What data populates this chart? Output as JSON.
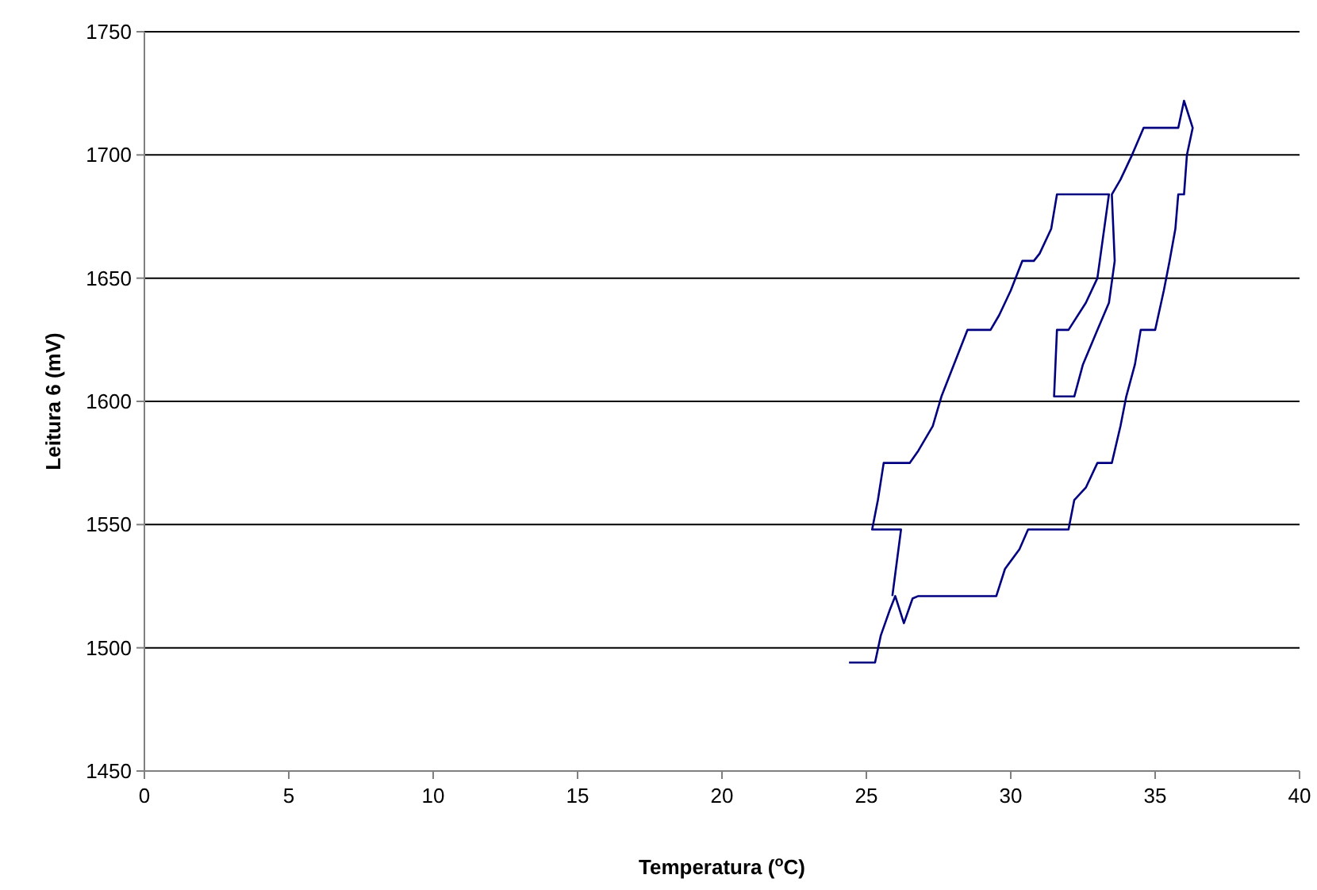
{
  "chart_data": {
    "type": "line",
    "xlabel": "Temperatura ($^{o}$C)",
    "ylabel": "Leitura 6 (mV)",
    "xlim": [
      0,
      40
    ],
    "ylim": [
      1450,
      1750
    ],
    "xticks": [
      0,
      5,
      10,
      15,
      20,
      25,
      30,
      35,
      40
    ],
    "yticks": [
      1450,
      1500,
      1550,
      1600,
      1650,
      1700,
      1750
    ],
    "grid": "y",
    "marker": "none",
    "line_style": "solid",
    "series": [
      {
        "color": "#000080",
        "x": [
          24.4,
          25.3,
          25.5,
          25.8,
          26.0,
          26.3,
          26.6,
          26.8,
          29.5,
          29.8,
          30.3,
          30.6,
          32.0,
          32.2,
          32.6,
          33.0,
          33.5,
          33.8,
          34.0,
          34.3,
          34.5,
          35.0,
          35.3,
          35.5,
          35.7,
          35.8,
          36.0,
          36.1,
          36.3,
          36.0,
          35.8,
          34.6,
          34.2,
          33.8,
          33.5,
          33.6,
          33.4,
          33.0,
          32.5,
          32.2,
          31.5,
          31.6,
          32.0,
          32.6,
          33.0,
          33.4,
          31.6,
          31.4,
          31.0,
          30.8,
          30.4,
          30.0,
          29.6,
          29.3,
          28.5,
          27.6,
          27.3,
          26.8,
          26.5,
          25.6,
          25.4,
          25.2,
          26.2,
          26.0,
          25.9
        ],
        "values": [
          1494,
          1494,
          1505,
          1515,
          1521,
          1510,
          1520,
          1521,
          1521,
          1532,
          1540,
          1548,
          1548,
          1560,
          1565,
          1575,
          1575,
          1590,
          1602,
          1615,
          1629,
          1629,
          1645,
          1657,
          1670,
          1684,
          1684,
          1700,
          1711,
          1722,
          1711,
          1711,
          1700,
          1690,
          1684,
          1657,
          1640,
          1629,
          1615,
          1602,
          1602,
          1629,
          1629,
          1640,
          1650,
          1684,
          1684,
          1670,
          1660,
          1657,
          1657,
          1645,
          1635,
          1629,
          1629,
          1602,
          1590,
          1580,
          1575,
          1575,
          1560,
          1548,
          1548,
          1530,
          1521
        ]
      }
    ]
  }
}
